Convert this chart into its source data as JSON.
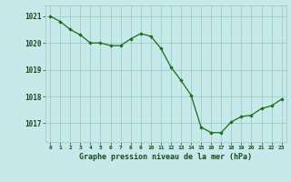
{
  "x": [
    0,
    1,
    2,
    3,
    4,
    5,
    6,
    7,
    8,
    9,
    10,
    11,
    12,
    13,
    14,
    15,
    16,
    17,
    18,
    19,
    20,
    21,
    22,
    23
  ],
  "y": [
    1021.0,
    1020.8,
    1020.5,
    1020.3,
    1020.0,
    1020.0,
    1019.9,
    1019.9,
    1020.15,
    1020.35,
    1020.25,
    1019.8,
    1019.1,
    1018.6,
    1018.05,
    1016.85,
    1016.65,
    1016.65,
    1017.05,
    1017.25,
    1017.3,
    1017.55,
    1017.65,
    1017.9
  ],
  "bg_color": "#c6eaea",
  "line_color": "#1a6e1a",
  "marker_color": "#1a6e1a",
  "grid_color": "#a0cccc",
  "xlabel": "Graphe pression niveau de la mer (hPa)",
  "xlabel_color": "#1a4a1a",
  "tick_label_color": "#1a4a1a",
  "ylim": [
    1016.3,
    1021.4
  ],
  "xlim": [
    -0.5,
    23.5
  ],
  "yticks": [
    1017,
    1018,
    1019,
    1020,
    1021
  ],
  "xtick_labels": [
    "0",
    "1",
    "2",
    "3",
    "4",
    "5",
    "6",
    "7",
    "8",
    "9",
    "10",
    "11",
    "12",
    "13",
    "14",
    "15",
    "16",
    "17",
    "18",
    "19",
    "20",
    "21",
    "22",
    "23"
  ],
  "figsize": [
    3.2,
    2.0
  ],
  "dpi": 100
}
